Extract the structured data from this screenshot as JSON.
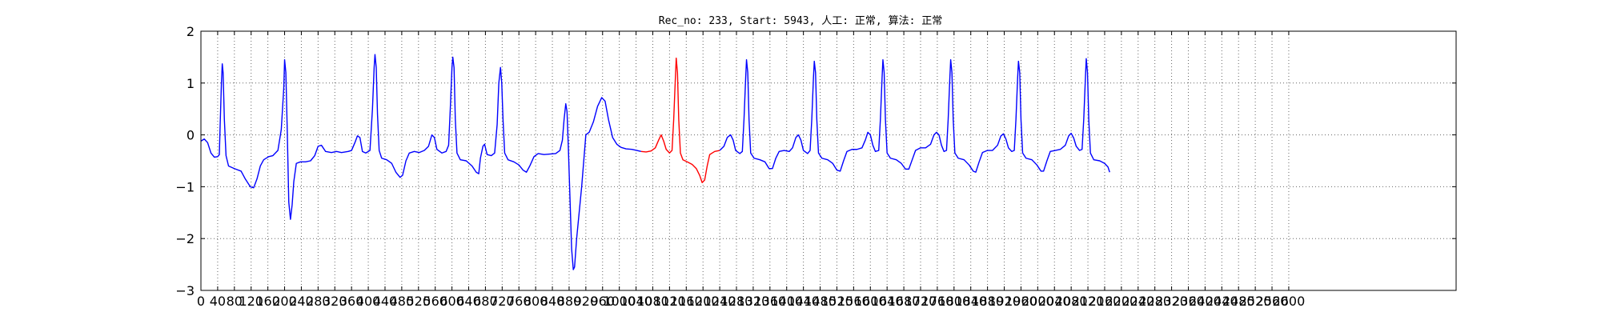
{
  "chart_data": {
    "type": "line",
    "title": "Rec_no: 233, Start: 5943, 人工: 正常, 算法: 正常",
    "xlabel": "",
    "ylabel": "",
    "xlim": [
      0,
      3000
    ],
    "ylim": [
      -3,
      2
    ],
    "grid": true,
    "legend": "none",
    "y_ticks": [
      "−3",
      "−2",
      "−1",
      "0",
      "1",
      "2"
    ],
    "x_ticks": [
      "0",
      "40",
      "80",
      "120",
      "160",
      "200",
      "240",
      "280",
      "320",
      "360",
      "400",
      "440",
      "480",
      "520",
      "560",
      "600",
      "640",
      "680",
      "720",
      "760",
      "800",
      "840",
      "880",
      "920",
      "960",
      "1000",
      "1040",
      "1080",
      "1120",
      "1160",
      "1200",
      "1240",
      "1280",
      "1320",
      "1360",
      "1400",
      "1440",
      "1480",
      "1520",
      "1560",
      "1600",
      "1640",
      "1680",
      "1720",
      "1760",
      "1800",
      "1840",
      "1880",
      "1920",
      "1960",
      "2000",
      "2040",
      "2080",
      "2120",
      "2160",
      "2200",
      "2240",
      "2280",
      "2320",
      "2360",
      "2400",
      "2440",
      "2480",
      "2520",
      "2560",
      "2600"
    ],
    "colors": {
      "signal": "#0000ff",
      "highlight": "#ff0000"
    },
    "series": [
      {
        "color": "#0000ff",
        "points": [
          [
            0,
            -0.12
          ],
          [
            8,
            -0.08
          ],
          [
            16,
            -0.15
          ],
          [
            24,
            -0.35
          ],
          [
            32,
            -0.43
          ],
          [
            40,
            -0.42
          ],
          [
            44,
            -0.38
          ],
          [
            46,
            0.2
          ],
          [
            49,
            1.0
          ],
          [
            51,
            1.37
          ],
          [
            53,
            1.2
          ],
          [
            56,
            0.3
          ],
          [
            60,
            -0.4
          ],
          [
            66,
            -0.6
          ],
          [
            80,
            -0.65
          ],
          [
            96,
            -0.7
          ],
          [
            106,
            -0.85
          ],
          [
            118,
            -1.0
          ],
          [
            126,
            -1.02
          ],
          [
            134,
            -0.85
          ],
          [
            142,
            -0.6
          ],
          [
            150,
            -0.48
          ],
          [
            162,
            -0.42
          ],
          [
            172,
            -0.4
          ],
          [
            184,
            -0.3
          ],
          [
            192,
            0.1
          ],
          [
            198,
            0.9
          ],
          [
            200,
            1.45
          ],
          [
            203,
            1.2
          ],
          [
            206,
            0.2
          ],
          [
            210,
            -1.3
          ],
          [
            214,
            -1.63
          ],
          [
            218,
            -1.35
          ],
          [
            222,
            -0.9
          ],
          [
            228,
            -0.55
          ],
          [
            238,
            -0.52
          ],
          [
            250,
            -0.52
          ],
          [
            262,
            -0.5
          ],
          [
            272,
            -0.4
          ],
          [
            280,
            -0.22
          ],
          [
            288,
            -0.2
          ],
          [
            298,
            -0.32
          ],
          [
            312,
            -0.34
          ],
          [
            324,
            -0.32
          ],
          [
            336,
            -0.34
          ],
          [
            352,
            -0.32
          ],
          [
            360,
            -0.3
          ],
          [
            368,
            -0.15
          ],
          [
            374,
            -0.02
          ],
          [
            380,
            -0.05
          ],
          [
            386,
            -0.32
          ],
          [
            394,
            -0.35
          ],
          [
            404,
            -0.3
          ],
          [
            410,
            0.5
          ],
          [
            414,
            1.3
          ],
          [
            416,
            1.55
          ],
          [
            419,
            1.3
          ],
          [
            422,
            0.4
          ],
          [
            426,
            -0.3
          ],
          [
            432,
            -0.45
          ],
          [
            444,
            -0.48
          ],
          [
            456,
            -0.55
          ],
          [
            466,
            -0.72
          ],
          [
            476,
            -0.82
          ],
          [
            482,
            -0.78
          ],
          [
            490,
            -0.5
          ],
          [
            498,
            -0.35
          ],
          [
            510,
            -0.32
          ],
          [
            522,
            -0.34
          ],
          [
            534,
            -0.3
          ],
          [
            544,
            -0.22
          ],
          [
            552,
            0.0
          ],
          [
            558,
            -0.05
          ],
          [
            564,
            -0.28
          ],
          [
            576,
            -0.35
          ],
          [
            586,
            -0.32
          ],
          [
            592,
            -0.2
          ],
          [
            596,
            0.5
          ],
          [
            600,
            1.3
          ],
          [
            602,
            1.5
          ],
          [
            605,
            1.3
          ],
          [
            608,
            0.3
          ],
          [
            612,
            -0.35
          ],
          [
            620,
            -0.48
          ],
          [
            634,
            -0.5
          ],
          [
            648,
            -0.6
          ],
          [
            658,
            -0.72
          ],
          [
            664,
            -0.75
          ],
          [
            668,
            -0.45
          ],
          [
            674,
            -0.22
          ],
          [
            678,
            -0.18
          ],
          [
            684,
            -0.38
          ],
          [
            694,
            -0.4
          ],
          [
            702,
            -0.35
          ],
          [
            708,
            0.2
          ],
          [
            712,
            1.0
          ],
          [
            716,
            1.3
          ],
          [
            719,
            1.0
          ],
          [
            722,
            0.3
          ],
          [
            726,
            -0.35
          ],
          [
            734,
            -0.48
          ],
          [
            748,
            -0.52
          ],
          [
            760,
            -0.58
          ],
          [
            770,
            -0.68
          ],
          [
            778,
            -0.72
          ],
          [
            786,
            -0.6
          ],
          [
            796,
            -0.42
          ],
          [
            806,
            -0.36
          ],
          [
            820,
            -0.38
          ],
          [
            834,
            -0.37
          ],
          [
            848,
            -0.36
          ],
          [
            858,
            -0.3
          ],
          [
            864,
            -0.1
          ],
          [
            868,
            0.3
          ],
          [
            872,
            0.6
          ],
          [
            875,
            0.45
          ],
          [
            878,
            -0.2
          ],
          [
            882,
            -1.2
          ],
          [
            886,
            -2.2
          ],
          [
            890,
            -2.6
          ],
          [
            893,
            -2.55
          ],
          [
            898,
            -2.0
          ],
          [
            904,
            -1.5
          ],
          [
            910,
            -1.0
          ],
          [
            916,
            -0.4
          ],
          [
            920,
            0.0
          ],
          [
            928,
            0.05
          ],
          [
            938,
            0.25
          ],
          [
            948,
            0.55
          ],
          [
            958,
            0.72
          ],
          [
            966,
            0.65
          ],
          [
            974,
            0.3
          ],
          [
            984,
            -0.05
          ],
          [
            994,
            -0.18
          ],
          [
            1004,
            -0.24
          ],
          [
            1016,
            -0.27
          ],
          [
            1030,
            -0.28
          ],
          [
            1042,
            -0.3
          ],
          [
            1052,
            -0.32
          ]
        ]
      },
      {
        "color": "#ff0000",
        "points": [
          [
            1052,
            -0.32
          ],
          [
            1064,
            -0.33
          ],
          [
            1076,
            -0.31
          ],
          [
            1086,
            -0.25
          ],
          [
            1094,
            -0.1
          ],
          [
            1100,
            0.0
          ],
          [
            1106,
            -0.12
          ],
          [
            1112,
            -0.28
          ],
          [
            1120,
            -0.35
          ],
          [
            1126,
            -0.3
          ],
          [
            1130,
            0.3
          ],
          [
            1134,
            1.1
          ],
          [
            1136,
            1.48
          ],
          [
            1139,
            1.2
          ],
          [
            1142,
            0.3
          ],
          [
            1146,
            -0.35
          ],
          [
            1152,
            -0.48
          ],
          [
            1162,
            -0.52
          ],
          [
            1174,
            -0.57
          ],
          [
            1184,
            -0.65
          ],
          [
            1192,
            -0.78
          ],
          [
            1198,
            -0.92
          ],
          [
            1204,
            -0.87
          ],
          [
            1210,
            -0.6
          ],
          [
            1216,
            -0.38
          ],
          [
            1228,
            -0.32
          ],
          [
            1240,
            -0.3
          ]
        ]
      },
      {
        "color": "#0000ff",
        "points": [
          [
            1240,
            -0.3
          ],
          [
            1250,
            -0.22
          ],
          [
            1258,
            -0.05
          ],
          [
            1266,
            0.0
          ],
          [
            1272,
            -0.1
          ],
          [
            1278,
            -0.3
          ],
          [
            1288,
            -0.36
          ],
          [
            1294,
            -0.32
          ],
          [
            1298,
            0.3
          ],
          [
            1302,
            1.1
          ],
          [
            1304,
            1.45
          ],
          [
            1307,
            1.2
          ],
          [
            1310,
            0.3
          ],
          [
            1314,
            -0.35
          ],
          [
            1322,
            -0.45
          ],
          [
            1336,
            -0.48
          ],
          [
            1348,
            -0.52
          ],
          [
            1358,
            -0.65
          ],
          [
            1366,
            -0.65
          ],
          [
            1374,
            -0.45
          ],
          [
            1382,
            -0.32
          ],
          [
            1394,
            -0.3
          ],
          [
            1406,
            -0.32
          ],
          [
            1414,
            -0.25
          ],
          [
            1422,
            -0.05
          ],
          [
            1428,
            0.0
          ],
          [
            1434,
            -0.1
          ],
          [
            1440,
            -0.3
          ],
          [
            1450,
            -0.36
          ],
          [
            1456,
            -0.3
          ],
          [
            1460,
            0.3
          ],
          [
            1464,
            1.1
          ],
          [
            1466,
            1.42
          ],
          [
            1469,
            1.2
          ],
          [
            1472,
            0.3
          ],
          [
            1476,
            -0.35
          ],
          [
            1484,
            -0.45
          ],
          [
            1498,
            -0.48
          ],
          [
            1510,
            -0.55
          ],
          [
            1520,
            -0.68
          ],
          [
            1528,
            -0.7
          ],
          [
            1536,
            -0.5
          ],
          [
            1544,
            -0.32
          ],
          [
            1556,
            -0.28
          ],
          [
            1568,
            -0.28
          ],
          [
            1580,
            -0.25
          ],
          [
            1588,
            -0.1
          ],
          [
            1594,
            0.05
          ],
          [
            1600,
            0.0
          ],
          [
            1606,
            -0.2
          ],
          [
            1612,
            -0.32
          ],
          [
            1620,
            -0.3
          ],
          [
            1624,
            0.3
          ],
          [
            1628,
            1.1
          ],
          [
            1630,
            1.45
          ],
          [
            1633,
            1.2
          ],
          [
            1636,
            0.3
          ],
          [
            1640,
            -0.35
          ],
          [
            1648,
            -0.45
          ],
          [
            1662,
            -0.48
          ],
          [
            1674,
            -0.55
          ],
          [
            1684,
            -0.66
          ],
          [
            1692,
            -0.66
          ],
          [
            1700,
            -0.48
          ],
          [
            1708,
            -0.3
          ],
          [
            1720,
            -0.25
          ],
          [
            1732,
            -0.25
          ],
          [
            1744,
            -0.18
          ],
          [
            1752,
            0.0
          ],
          [
            1758,
            0.05
          ],
          [
            1764,
            0.0
          ],
          [
            1770,
            -0.2
          ],
          [
            1776,
            -0.32
          ],
          [
            1782,
            -0.3
          ],
          [
            1786,
            0.3
          ],
          [
            1790,
            1.1
          ],
          [
            1792,
            1.45
          ],
          [
            1795,
            1.2
          ],
          [
            1798,
            0.3
          ],
          [
            1802,
            -0.35
          ],
          [
            1810,
            -0.45
          ],
          [
            1824,
            -0.48
          ],
          [
            1836,
            -0.58
          ],
          [
            1846,
            -0.7
          ],
          [
            1852,
            -0.72
          ],
          [
            1860,
            -0.52
          ],
          [
            1868,
            -0.34
          ],
          [
            1880,
            -0.3
          ],
          [
            1892,
            -0.3
          ],
          [
            1904,
            -0.2
          ],
          [
            1912,
            -0.02
          ],
          [
            1918,
            0.02
          ],
          [
            1924,
            -0.08
          ],
          [
            1930,
            -0.25
          ],
          [
            1938,
            -0.32
          ],
          [
            1944,
            -0.3
          ],
          [
            1948,
            0.3
          ],
          [
            1952,
            1.1
          ],
          [
            1954,
            1.42
          ],
          [
            1957,
            1.2
          ],
          [
            1960,
            0.3
          ],
          [
            1964,
            -0.35
          ],
          [
            1972,
            -0.45
          ],
          [
            1986,
            -0.48
          ],
          [
            1998,
            -0.58
          ],
          [
            2008,
            -0.7
          ],
          [
            2014,
            -0.7
          ],
          [
            2022,
            -0.5
          ],
          [
            2030,
            -0.32
          ],
          [
            2042,
            -0.3
          ],
          [
            2054,
            -0.28
          ],
          [
            2066,
            -0.2
          ],
          [
            2074,
            -0.02
          ],
          [
            2080,
            0.03
          ],
          [
            2086,
            -0.06
          ],
          [
            2092,
            -0.22
          ],
          [
            2100,
            -0.3
          ],
          [
            2106,
            -0.28
          ],
          [
            2110,
            0.3
          ],
          [
            2114,
            1.1
          ],
          [
            2116,
            1.47
          ],
          [
            2119,
            1.2
          ],
          [
            2122,
            0.3
          ],
          [
            2126,
            -0.35
          ],
          [
            2134,
            -0.48
          ],
          [
            2148,
            -0.5
          ],
          [
            2160,
            -0.55
          ],
          [
            2168,
            -0.62
          ],
          [
            2172,
            -0.72
          ]
        ]
      }
    ]
  }
}
